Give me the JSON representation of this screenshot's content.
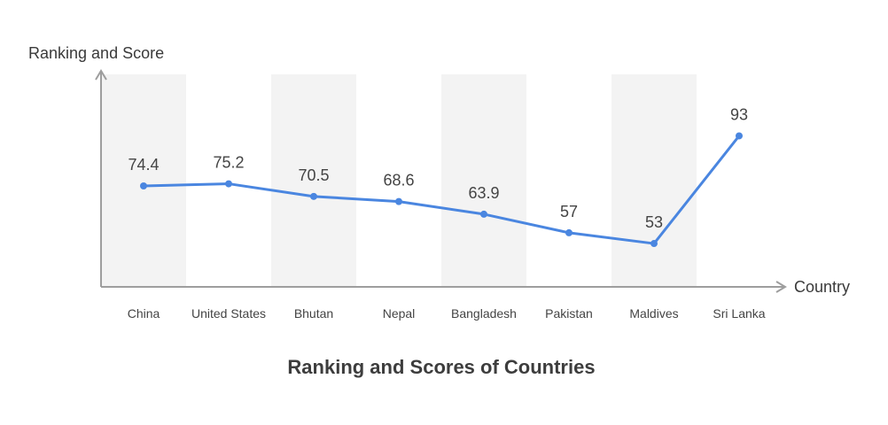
{
  "chart_data": {
    "type": "line",
    "title": "Ranking and Scores of Countries",
    "xlabel": "Country",
    "ylabel": "Ranking and Score",
    "categories": [
      "China",
      "United States",
      "Bhutan",
      "Nepal",
      "Bangladesh",
      "Pakistan",
      "Maldives",
      "Sri Lanka"
    ],
    "values": [
      74.4,
      75.2,
      70.5,
      68.6,
      63.9,
      57,
      53,
      93
    ],
    "value_labels": [
      "74.4",
      "75.2",
      "70.5",
      "68.6",
      "63.9",
      "57",
      "53",
      "93"
    ],
    "grid": false,
    "colors": {
      "line": "#4a86e0",
      "point": "#4a86e0",
      "band": "#f3f3f3",
      "axis": "#9e9e9e"
    }
  }
}
